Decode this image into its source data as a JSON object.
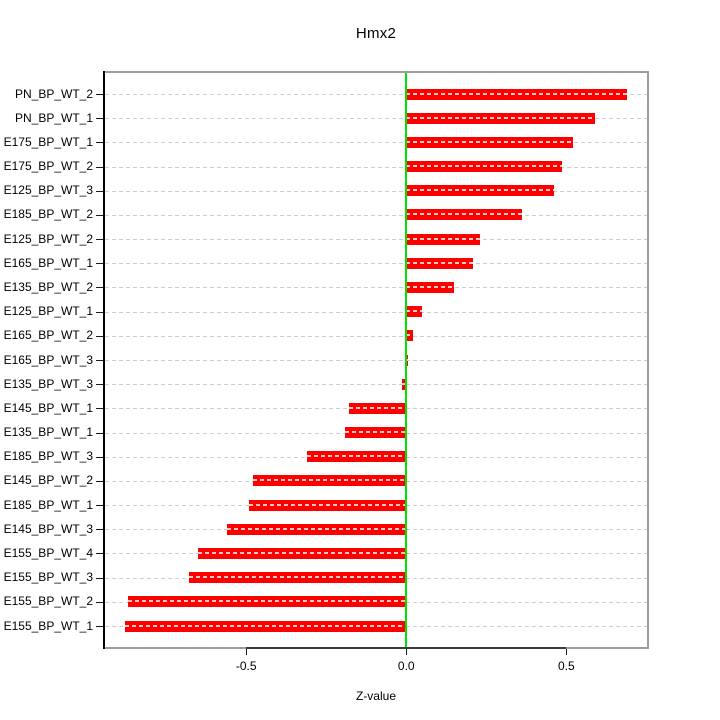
{
  "title": "Hmx2",
  "xlabel": "Z-value",
  "chart_data": {
    "type": "bar",
    "orientation": "horizontal",
    "title": "Hmx2",
    "xlabel": "Z-value",
    "ylabel": "",
    "categories": [
      "PN_BP_WT_2",
      "PN_BP_WT_1",
      "E175_BP_WT_1",
      "E175_BP_WT_2",
      "E125_BP_WT_3",
      "E185_BP_WT_2",
      "E125_BP_WT_2",
      "E165_BP_WT_1",
      "E135_BP_WT_2",
      "E125_BP_WT_1",
      "E165_BP_WT_2",
      "E165_BP_WT_3",
      "E135_BP_WT_3",
      "E145_BP_WT_1",
      "E135_BP_WT_1",
      "E185_BP_WT_3",
      "E145_BP_WT_2",
      "E185_BP_WT_1",
      "E145_BP_WT_3",
      "E155_BP_WT_4",
      "E155_BP_WT_3",
      "E155_BP_WT_2",
      "E155_BP_WT_1"
    ],
    "values": [
      0.69,
      0.59,
      0.52,
      0.485,
      0.46,
      0.36,
      0.23,
      0.21,
      0.15,
      0.05,
      0.02,
      0.006,
      -0.012,
      -0.18,
      -0.19,
      -0.31,
      -0.48,
      -0.49,
      -0.56,
      -0.65,
      -0.68,
      -0.87,
      -0.88
    ],
    "xticks": [
      -0.5,
      0.0,
      0.5
    ],
    "xtick_labels": [
      "-0.5",
      "0.0",
      "0.5"
    ],
    "xlim": [
      -0.941,
      0.752
    ],
    "grid": "dotted horizontal line per category, full plot width",
    "zero_line_at": 0.0,
    "legend": null,
    "bar_color": "#ff0000",
    "zero_line_color": "#00e300",
    "box_color": "#9d9d9d",
    "grid_color": "#cdcdcd"
  }
}
